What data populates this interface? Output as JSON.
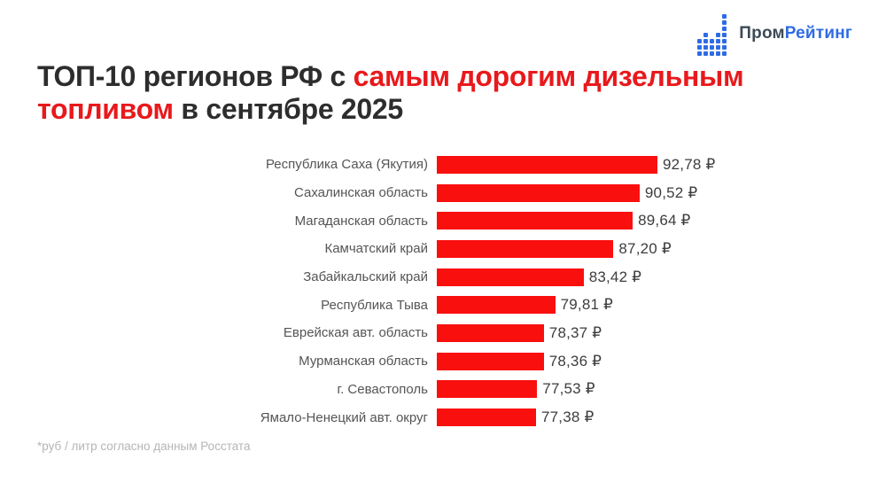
{
  "theme": {
    "background": "#ffffff",
    "bar_red": "#fa0f0f",
    "title_red": "#e8191c",
    "title_dark": "#2d2d2d",
    "label_gray": "#555555",
    "value_dark": "#3d3d3d",
    "footnote_gray": "#b5b5b5",
    "logo_dark": "#3e4a57",
    "logo_blue": "#2f6be4"
  },
  "logo": {
    "icon": "dot-bar-chart-icon",
    "icon_columns": [
      3,
      4,
      3,
      4,
      7
    ],
    "text_part1": "Пром",
    "text_part2": "Рейтинг"
  },
  "title": {
    "segments": [
      {
        "text": "ТОП-10 регионов РФ с ",
        "highlight": false
      },
      {
        "text": "самым дорогим дизельным",
        "highlight": true
      },
      {
        "text": "топливом",
        "highlight": true
      },
      {
        "text": " в сентябре 2025",
        "highlight": false
      }
    ]
  },
  "footnote": "*руб / литр согласно данным Росстата",
  "chart_data": {
    "type": "bar",
    "orientation": "horizontal",
    "title": "ТОП-10 регионов РФ с самым дорогим дизельным топливом в сентябре 2025",
    "unit": "руб / литр",
    "source_note": "*руб / литр согласно данным Росстата",
    "categories": [
      "Республика Саха (Якутия)",
      "Сахалинская область",
      "Магаданская область",
      "Камчатский край",
      "Забайкальский край",
      "Республика Тыва",
      "Еврейская авт. область",
      "Мурманская область",
      "г. Севастополь",
      "Ямало-Ненецкий авт. округ"
    ],
    "values": [
      92.78,
      90.52,
      89.64,
      87.2,
      83.42,
      79.81,
      78.37,
      78.36,
      77.53,
      77.38
    ],
    "value_labels": [
      "92,78 ₽",
      "90,52 ₽",
      "89,64 ₽",
      "87,20 ₽",
      "83,42 ₽",
      "79,81 ₽",
      "78,37 ₽",
      "78,36 ₽",
      "77,53 ₽",
      "77,38 ₽"
    ],
    "xlim": [
      64.8,
      94
    ],
    "grid": false,
    "legend": false,
    "bar_color": "#fa0f0f"
  }
}
